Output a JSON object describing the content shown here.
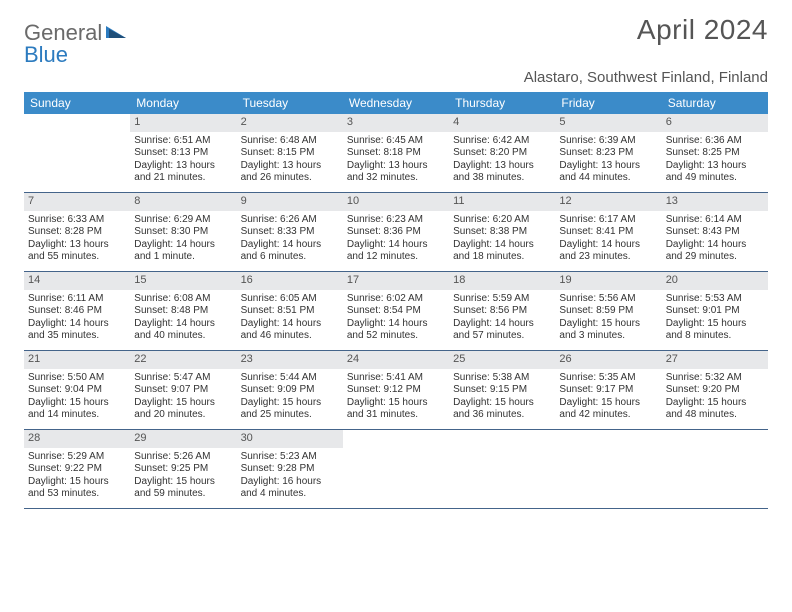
{
  "logo": {
    "word1": "General",
    "word2": "Blue"
  },
  "title": "April 2024",
  "location": "Alastaro, Southwest Finland, Finland",
  "colors": {
    "header_bg": "#3b8bc9",
    "daynum_bg": "#e7e8ea",
    "row_border": "#44648a",
    "text": "#333333",
    "title_color": "#555555"
  },
  "dayHeaders": [
    "Sunday",
    "Monday",
    "Tuesday",
    "Wednesday",
    "Thursday",
    "Friday",
    "Saturday"
  ],
  "weeks": [
    [
      null,
      {
        "n": "1",
        "sunrise": "6:51 AM",
        "sunset": "8:13 PM",
        "daylight": "13 hours and 21 minutes."
      },
      {
        "n": "2",
        "sunrise": "6:48 AM",
        "sunset": "8:15 PM",
        "daylight": "13 hours and 26 minutes."
      },
      {
        "n": "3",
        "sunrise": "6:45 AM",
        "sunset": "8:18 PM",
        "daylight": "13 hours and 32 minutes."
      },
      {
        "n": "4",
        "sunrise": "6:42 AM",
        "sunset": "8:20 PM",
        "daylight": "13 hours and 38 minutes."
      },
      {
        "n": "5",
        "sunrise": "6:39 AM",
        "sunset": "8:23 PM",
        "daylight": "13 hours and 44 minutes."
      },
      {
        "n": "6",
        "sunrise": "6:36 AM",
        "sunset": "8:25 PM",
        "daylight": "13 hours and 49 minutes."
      }
    ],
    [
      {
        "n": "7",
        "sunrise": "6:33 AM",
        "sunset": "8:28 PM",
        "daylight": "13 hours and 55 minutes."
      },
      {
        "n": "8",
        "sunrise": "6:29 AM",
        "sunset": "8:30 PM",
        "daylight": "14 hours and 1 minute."
      },
      {
        "n": "9",
        "sunrise": "6:26 AM",
        "sunset": "8:33 PM",
        "daylight": "14 hours and 6 minutes."
      },
      {
        "n": "10",
        "sunrise": "6:23 AM",
        "sunset": "8:36 PM",
        "daylight": "14 hours and 12 minutes."
      },
      {
        "n": "11",
        "sunrise": "6:20 AM",
        "sunset": "8:38 PM",
        "daylight": "14 hours and 18 minutes."
      },
      {
        "n": "12",
        "sunrise": "6:17 AM",
        "sunset": "8:41 PM",
        "daylight": "14 hours and 23 minutes."
      },
      {
        "n": "13",
        "sunrise": "6:14 AM",
        "sunset": "8:43 PM",
        "daylight": "14 hours and 29 minutes."
      }
    ],
    [
      {
        "n": "14",
        "sunrise": "6:11 AM",
        "sunset": "8:46 PM",
        "daylight": "14 hours and 35 minutes."
      },
      {
        "n": "15",
        "sunrise": "6:08 AM",
        "sunset": "8:48 PM",
        "daylight": "14 hours and 40 minutes."
      },
      {
        "n": "16",
        "sunrise": "6:05 AM",
        "sunset": "8:51 PM",
        "daylight": "14 hours and 46 minutes."
      },
      {
        "n": "17",
        "sunrise": "6:02 AM",
        "sunset": "8:54 PM",
        "daylight": "14 hours and 52 minutes."
      },
      {
        "n": "18",
        "sunrise": "5:59 AM",
        "sunset": "8:56 PM",
        "daylight": "14 hours and 57 minutes."
      },
      {
        "n": "19",
        "sunrise": "5:56 AM",
        "sunset": "8:59 PM",
        "daylight": "15 hours and 3 minutes."
      },
      {
        "n": "20",
        "sunrise": "5:53 AM",
        "sunset": "9:01 PM",
        "daylight": "15 hours and 8 minutes."
      }
    ],
    [
      {
        "n": "21",
        "sunrise": "5:50 AM",
        "sunset": "9:04 PM",
        "daylight": "15 hours and 14 minutes."
      },
      {
        "n": "22",
        "sunrise": "5:47 AM",
        "sunset": "9:07 PM",
        "daylight": "15 hours and 20 minutes."
      },
      {
        "n": "23",
        "sunrise": "5:44 AM",
        "sunset": "9:09 PM",
        "daylight": "15 hours and 25 minutes."
      },
      {
        "n": "24",
        "sunrise": "5:41 AM",
        "sunset": "9:12 PM",
        "daylight": "15 hours and 31 minutes."
      },
      {
        "n": "25",
        "sunrise": "5:38 AM",
        "sunset": "9:15 PM",
        "daylight": "15 hours and 36 minutes."
      },
      {
        "n": "26",
        "sunrise": "5:35 AM",
        "sunset": "9:17 PM",
        "daylight": "15 hours and 42 minutes."
      },
      {
        "n": "27",
        "sunrise": "5:32 AM",
        "sunset": "9:20 PM",
        "daylight": "15 hours and 48 minutes."
      }
    ],
    [
      {
        "n": "28",
        "sunrise": "5:29 AM",
        "sunset": "9:22 PM",
        "daylight": "15 hours and 53 minutes."
      },
      {
        "n": "29",
        "sunrise": "5:26 AM",
        "sunset": "9:25 PM",
        "daylight": "15 hours and 59 minutes."
      },
      {
        "n": "30",
        "sunrise": "5:23 AM",
        "sunset": "9:28 PM",
        "daylight": "16 hours and 4 minutes."
      },
      null,
      null,
      null,
      null
    ]
  ],
  "labels": {
    "sunrise": "Sunrise:",
    "sunset": "Sunset:",
    "daylight": "Daylight:"
  }
}
